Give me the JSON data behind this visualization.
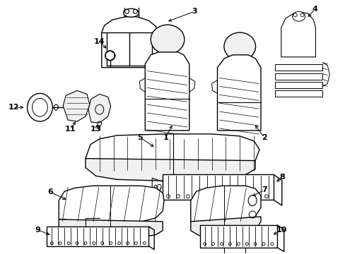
{
  "background_color": "#ffffff",
  "line_color": "#000000",
  "figsize": [
    4.89,
    3.6
  ],
  "dpi": 100,
  "lw": 1.0
}
